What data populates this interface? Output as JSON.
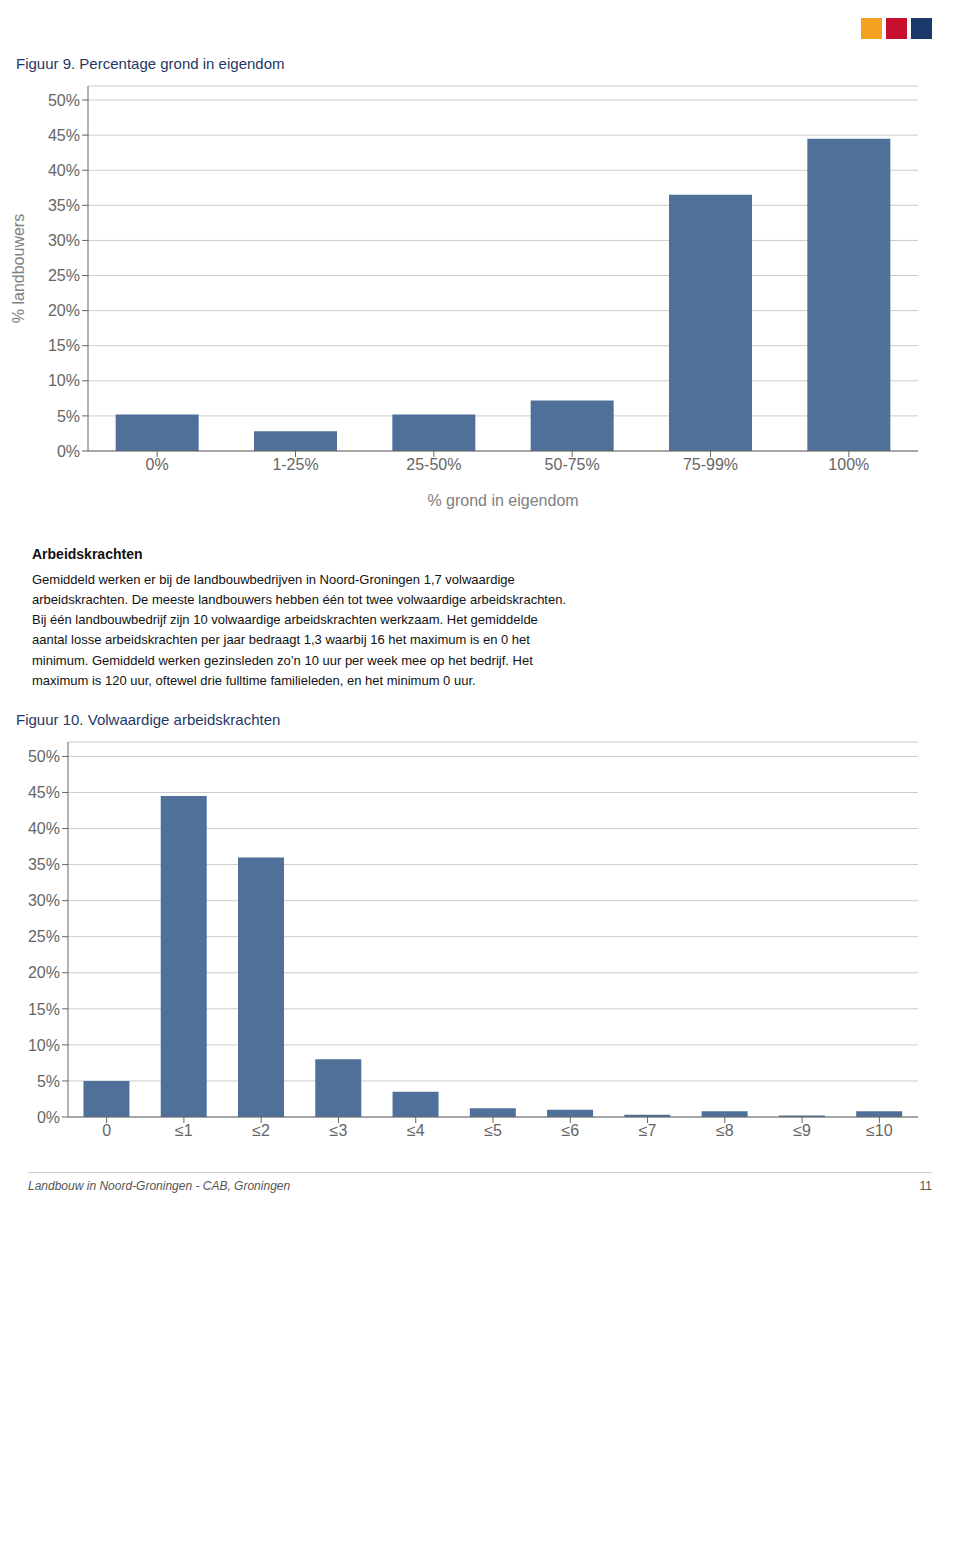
{
  "chart_data": [
    {
      "type": "bar",
      "title": "Figuur 9. Percentage grond in eigendom",
      "categories": [
        "0%",
        "1-25%",
        "25-50%",
        "50-75%",
        "75-99%",
        "100%"
      ],
      "values": [
        5.2,
        2.8,
        5.2,
        7.2,
        36.5,
        44.5
      ],
      "color": "#4F7098",
      "xlabel": "% grond in eigendom",
      "ylabel": "% landbouwers",
      "ylim": [
        0,
        52
      ],
      "yticks": [
        {
          "value": 0,
          "label": "0%"
        },
        {
          "value": 5,
          "label": "5%"
        },
        {
          "value": 10,
          "label": "10%"
        },
        {
          "value": 15,
          "label": "15%"
        },
        {
          "value": 20,
          "label": "20%"
        },
        {
          "value": 25,
          "label": "25%"
        },
        {
          "value": 30,
          "label": "30%"
        },
        {
          "value": 35,
          "label": "35%"
        },
        {
          "value": 40,
          "label": "40%"
        },
        {
          "value": 45,
          "label": "45%"
        },
        {
          "value": 50,
          "label": "50%"
        }
      ],
      "grid": true
    },
    {
      "type": "bar",
      "title": "Figuur 10. Volwaardige arbeidskrachten",
      "categories": [
        "0",
        "≤1",
        "≤2",
        "≤3",
        "≤4",
        "≤5",
        "≤6",
        "≤7",
        "≤8",
        "≤9",
        "≤10"
      ],
      "values": [
        5.0,
        44.5,
        36.0,
        8.0,
        3.5,
        1.2,
        1.0,
        0.3,
        0.8,
        0.2,
        0.8
      ],
      "color": "#4F7098",
      "ylim": [
        0,
        52
      ],
      "yticks": [
        {
          "value": 0,
          "label": "0%"
        },
        {
          "value": 5,
          "label": "5%"
        },
        {
          "value": 10,
          "label": "10%"
        },
        {
          "value": 15,
          "label": "15%"
        },
        {
          "value": 20,
          "label": "20%"
        },
        {
          "value": 25,
          "label": "25%"
        },
        {
          "value": 30,
          "label": "30%"
        },
        {
          "value": 35,
          "label": "35%"
        },
        {
          "value": 40,
          "label": "40%"
        },
        {
          "value": 45,
          "label": "45%"
        },
        {
          "value": 50,
          "label": "50%"
        }
      ],
      "grid": true
    }
  ],
  "header": "Arbeidskrachten",
  "body": [
    "Gemiddeld werken er bij de landbouwbedrijven in Noord-Groningen 1,7 volwaardige",
    "arbeidskrachten. De meeste landbouwers hebben één tot twee volwaardige arbeidskrachten.",
    "Bij één landbouwbedrijf zijn 10 volwaardige arbeidskrachten werkzaam. Het gemiddelde",
    "aantal losse arbeidskrachten per jaar bedraagt 1,3 waarbij 16 het maximum is en 0 het",
    "minimum. Gemiddeld werken gezinsleden zo’n 10 uur per week mee op het bedrijf. Het",
    "maximum is 120 uur, oftewel drie fulltime familieleden, en het minimum 0 uur."
  ],
  "footer": "Landbouw in Noord-Groningen - CAB, Groningen",
  "page": "11",
  "logo": {
    "colors": [
      "#F4A020",
      "#C8102E",
      "#1A3A6B"
    ]
  }
}
